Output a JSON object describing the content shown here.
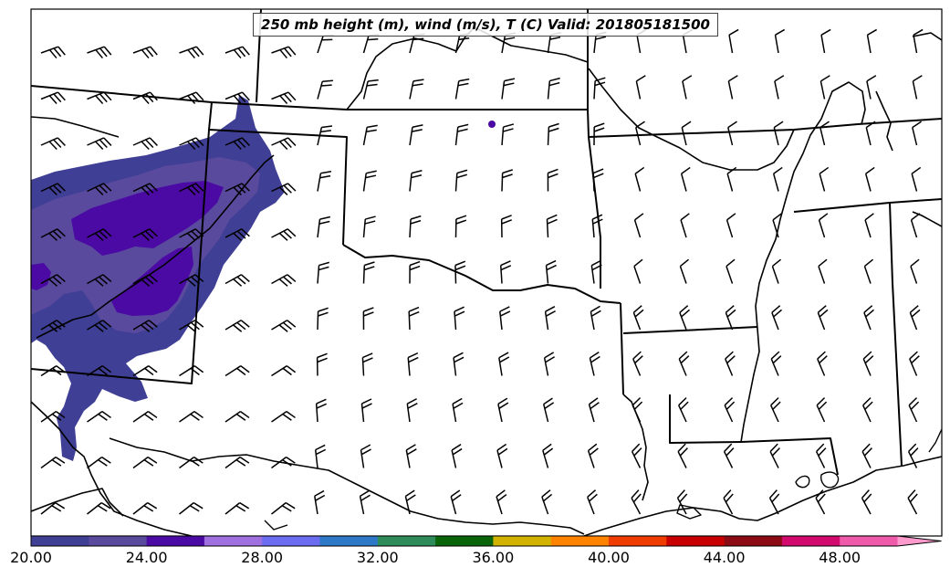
{
  "title": "250 mb height (m), wind (m/s), T (C) Valid: 201805181500",
  "colorbar": {
    "labels": [
      "20.00",
      "24.00",
      "28.00",
      "32.00",
      "36.00",
      "40.00",
      "44.00",
      "48.00"
    ],
    "colors": [
      "#3f3f96",
      "#5a4a9e",
      "#4b0aa4",
      "#a070e0",
      "#6c6cf0",
      "#2e78c8",
      "#2e8c5a",
      "#0a640a",
      "#d2b400",
      "#ff8200",
      "#f03c00",
      "#c80000",
      "#8c0a14",
      "#d20a6e",
      "#f05aaa",
      "#ff9acd"
    ]
  },
  "colors": {
    "temperature_fill_light": "#3f3f96",
    "temperature_fill_mid": "#5a4a9e",
    "temperature_fill_dark": "#4b0aa4",
    "boundaries": "#000000"
  },
  "wind_barb_icon": "wind-barb"
}
